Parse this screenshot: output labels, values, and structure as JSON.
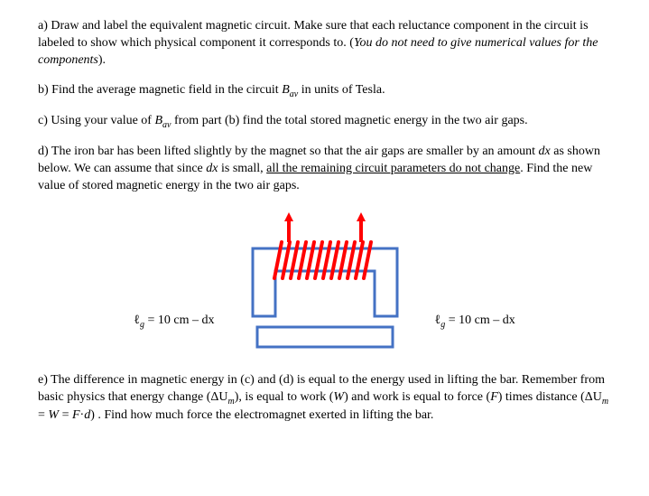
{
  "paragraphs": {
    "a_plain": "a) Draw and label the equivalent magnetic circuit.  Make sure that each reluctance component in the circuit is labeled to show which physical component it corresponds to. (",
    "a_ital": "You do not need to give numerical values for the components",
    "a_end": ").",
    "b_pre": "b)  Find the average magnetic field in the circuit ",
    "b_sym": "B",
    "b_sub": "av",
    "b_post": " in units of Tesla.",
    "c_pre": "c) Using your value of ",
    "c_sym": "B",
    "c_sub": "av",
    "c_post": " from part (b) find the total stored magnetic energy in the two air gaps.",
    "d_pre": "d) The iron bar has been lifted slightly by the magnet so that the air gaps are smaller by an amount ",
    "d_dx": "dx",
    "d_mid": " as shown below.  We can assume that since ",
    "d_dx2": "dx",
    "d_mid2": " is small, ",
    "d_under": "all the remaining circuit parameters do not change",
    "d_post": ".  Find the new value of stored magnetic energy in the two air gaps.",
    "e_pre": "e) The difference in magnetic energy in (c) and (d) is equal to the energy used in lifting the bar.  Remember from basic physics that energy change (ΔU",
    "e_sub_m": "m",
    "e_mid1": "),  is equal to work  (",
    "e_W": "W",
    "e_mid2": ")  and work is equal to force (",
    "e_F": "F",
    "e_mid3": ")  times distance (ΔU",
    "e_sub_m2": "m",
    "e_eq": " = ",
    "e_W2": "W",
    "e_eq2": " = ",
    "e_F2": "F",
    "e_dot": "·",
    "e_d": "d",
    "e_post": ") .  Find how much force the electromagnet exerted in lifting the bar."
  },
  "labels": {
    "left_ell": "ℓ",
    "left_sub": "g",
    "left_rest": " = 10 cm – dx",
    "right_ell": "ℓ",
    "right_sub": "g",
    "right_rest": " = 10 cm – dx"
  },
  "figure": {
    "core_stroke": "#4472c4",
    "core_stroke_width": 3,
    "coil_color": "#ff0000",
    "coil_stroke_width": 4,
    "arrow_color": "#ff0000",
    "background": "#ffffff"
  }
}
